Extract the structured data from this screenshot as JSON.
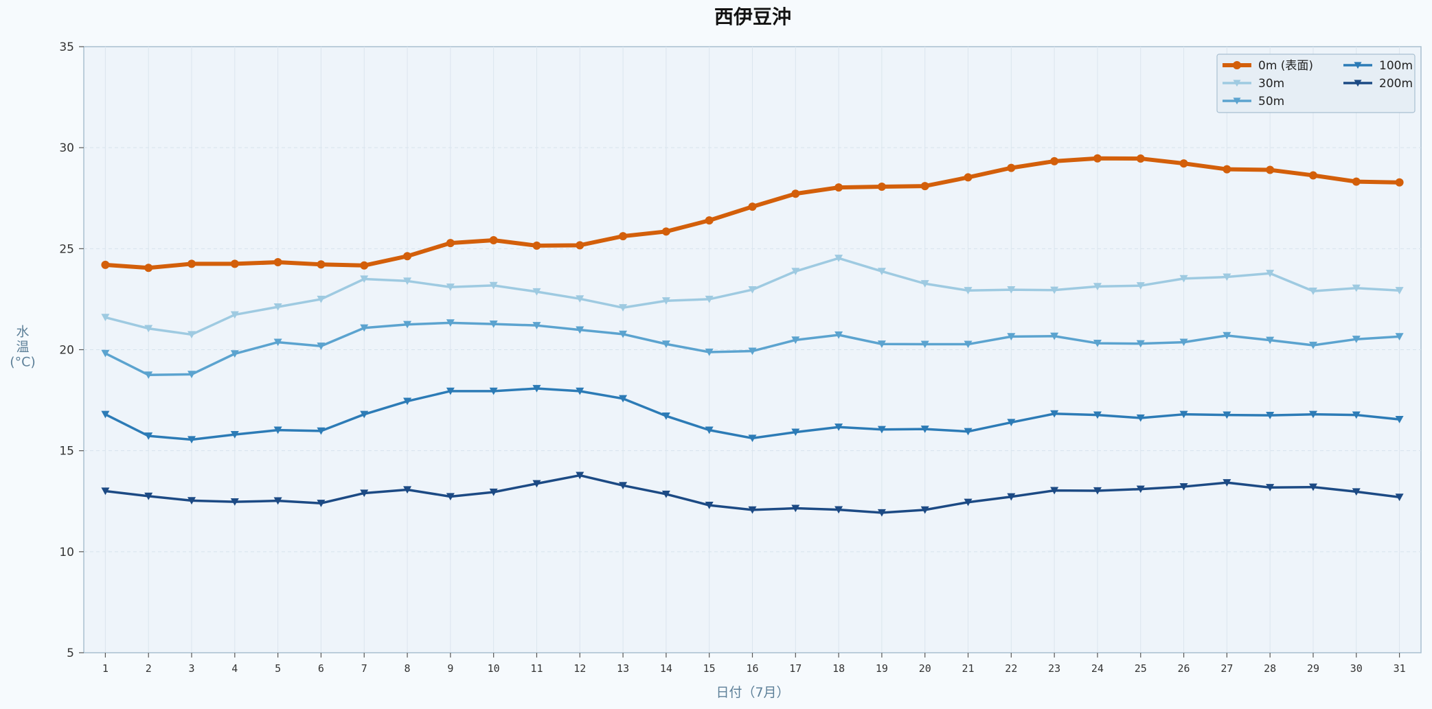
{
  "chart_data": {
    "type": "line",
    "title": "西伊豆沖",
    "xlabel": "日付（7月）",
    "ylabel": "水温 (°C)",
    "ylabel_lines": [
      "水",
      "温",
      "(°C)"
    ],
    "xlim": [
      0.5,
      31.5
    ],
    "ylim": [
      5,
      35
    ],
    "yticks": [
      5,
      10,
      15,
      20,
      25,
      30,
      35
    ],
    "x": [
      1,
      2,
      3,
      4,
      5,
      6,
      7,
      8,
      9,
      10,
      11,
      12,
      13,
      14,
      15,
      16,
      17,
      18,
      19,
      20,
      21,
      22,
      23,
      24,
      25,
      26,
      27,
      28,
      29,
      30,
      31
    ],
    "grid": true,
    "legend_position": "top-right",
    "series": [
      {
        "name": "0m (表面)",
        "color": "#d35f0a",
        "marker": "circle",
        "line_width": 6,
        "values": [
          24.2,
          24.05,
          24.25,
          24.25,
          24.33,
          24.22,
          24.17,
          24.63,
          25.28,
          25.42,
          25.15,
          25.17,
          25.62,
          25.85,
          26.4,
          27.08,
          27.72,
          28.03,
          28.07,
          28.1,
          28.53,
          29.0,
          29.33,
          29.47,
          29.46,
          29.22,
          28.93,
          28.9,
          28.63,
          28.32,
          28.28
        ]
      },
      {
        "name": "30m",
        "color": "#9ecae1",
        "marker": "triangle-down",
        "line_width": 3.5,
        "values": [
          21.6,
          21.05,
          20.75,
          21.73,
          22.12,
          22.5,
          23.5,
          23.4,
          23.1,
          23.18,
          22.87,
          22.52,
          22.08,
          22.42,
          22.5,
          22.97,
          23.88,
          24.53,
          23.88,
          23.27,
          22.93,
          22.97,
          22.95,
          23.13,
          23.17,
          23.52,
          23.6,
          23.78,
          22.9,
          23.05,
          22.93
        ]
      },
      {
        "name": "50m",
        "color": "#5ba3cf",
        "marker": "triangle-down",
        "line_width": 3.5,
        "values": [
          19.82,
          18.75,
          18.78,
          19.8,
          20.37,
          20.18,
          21.08,
          21.25,
          21.33,
          21.27,
          21.2,
          20.98,
          20.77,
          20.28,
          19.88,
          19.93,
          20.48,
          20.73,
          20.28,
          20.27,
          20.27,
          20.65,
          20.67,
          20.32,
          20.3,
          20.37,
          20.7,
          20.47,
          20.22,
          20.52,
          20.65
        ]
      },
      {
        "name": "100m",
        "color": "#2c7bb6",
        "marker": "triangle-down",
        "line_width": 3.5,
        "values": [
          16.8,
          15.73,
          15.55,
          15.8,
          16.02,
          15.98,
          16.8,
          17.45,
          17.95,
          17.95,
          18.08,
          17.95,
          17.58,
          16.72,
          16.02,
          15.62,
          15.92,
          16.17,
          16.05,
          16.07,
          15.95,
          16.4,
          16.83,
          16.77,
          16.62,
          16.8,
          16.77,
          16.75,
          16.8,
          16.77,
          16.55
        ]
      },
      {
        "name": "200m",
        "color": "#1c4a84",
        "marker": "triangle-down",
        "line_width": 3.5,
        "values": [
          13.0,
          12.75,
          12.53,
          12.47,
          12.52,
          12.4,
          12.9,
          13.07,
          12.73,
          12.95,
          13.37,
          13.78,
          13.28,
          12.85,
          12.3,
          12.07,
          12.15,
          12.08,
          11.93,
          12.07,
          12.45,
          12.72,
          13.03,
          13.02,
          13.1,
          13.22,
          13.42,
          13.18,
          13.2,
          12.97,
          12.7
        ]
      }
    ]
  }
}
